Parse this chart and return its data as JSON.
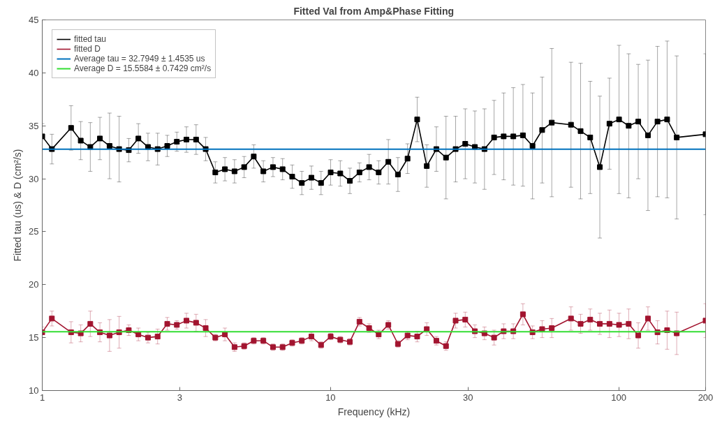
{
  "chart_data": {
    "type": "line",
    "title": "Fitted Val from Amp&Phase Fitting",
    "xlabel": "Frequency (kHz)",
    "ylabel": "Fitted tau (us) & D (cm²/s)",
    "x": [
      1,
      1.08,
      1.259,
      1.36,
      1.468,
      1.585,
      1.712,
      1.848,
      1.996,
      2.155,
      2.327,
      2.513,
      2.714,
      2.93,
      3.164,
      3.417,
      3.689,
      3.984,
      4.302,
      4.645,
      5.016,
      5.416,
      5.848,
      6.315,
      6.819,
      7.363,
      7.951,
      8.585,
      9.27,
      10.01,
      10.81,
      11.67,
      12.6,
      13.61,
      14.69,
      15.87,
      17.13,
      18.5,
      19.98,
      21.57,
      23.29,
      25.15,
      27.16,
      29.33,
      31.67,
      34.2,
      36.93,
      39.87,
      43.06,
      46.49,
      50.2,
      54.21,
      58.54,
      68.25,
      73.7,
      79.58,
      85.93,
      92.8,
      100.2,
      108.2,
      116.8,
      126.2,
      136.2,
      147.1,
      158.8,
      200
    ],
    "series": [
      {
        "name": "fitted tau",
        "color": "#000000",
        "values": [
          34.0,
          32.8,
          34.8,
          33.6,
          33.0,
          33.8,
          33.1,
          32.8,
          32.7,
          33.8,
          33.0,
          32.8,
          33.1,
          33.5,
          33.7,
          33.7,
          32.8,
          30.6,
          30.9,
          30.7,
          31.1,
          32.1,
          30.7,
          31.1,
          30.9,
          30.2,
          29.6,
          30.1,
          29.6,
          30.6,
          30.5,
          29.8,
          30.6,
          31.1,
          30.6,
          31.6,
          30.4,
          31.9,
          35.6,
          31.2,
          32.8,
          32.0,
          32.8,
          33.3,
          33.0,
          32.8,
          33.9,
          34.0,
          34.0,
          34.1,
          33.1,
          34.6,
          35.3,
          35.1,
          34.5,
          33.9,
          31.1,
          35.2,
          35.6,
          35.0,
          35.4,
          34.1,
          35.4,
          35.6,
          33.9,
          34.2
        ],
        "errors": [
          1.2,
          1.4,
          2.1,
          1.8,
          2.3,
          2.0,
          3.1,
          3.1,
          1.1,
          1.4,
          1.3,
          1.5,
          1.0,
          0.9,
          1.2,
          1.4,
          1.1,
          1.0,
          1.1,
          1.1,
          1.0,
          1.1,
          1.0,
          0.9,
          1.0,
          1.1,
          1.1,
          1.1,
          1.1,
          1.2,
          1.2,
          1.2,
          0.9,
          1.2,
          1.1,
          2.1,
          1.6,
          1.4,
          2.1,
          2.0,
          2.1,
          3.9,
          3.1,
          3.3,
          3.4,
          3.8,
          3.5,
          4.1,
          4.6,
          4.8,
          5.0,
          5.0,
          7.0,
          5.9,
          6.4,
          5.3,
          6.7,
          4.3,
          7.0,
          6.8,
          5.4,
          7.1,
          7.1,
          7.4,
          7.7,
          7.6
        ]
      },
      {
        "name": "fitted D",
        "color": "#a2142f",
        "values": [
          15.5,
          16.8,
          15.5,
          15.4,
          16.3,
          15.5,
          15.2,
          15.5,
          15.7,
          15.3,
          15.0,
          15.1,
          16.3,
          16.2,
          16.6,
          16.4,
          15.9,
          15.0,
          15.3,
          14.1,
          14.2,
          14.7,
          14.7,
          14.1,
          14.1,
          14.5,
          14.7,
          15.1,
          14.3,
          15.1,
          14.8,
          14.6,
          16.5,
          15.9,
          15.3,
          16.2,
          14.4,
          15.2,
          15.1,
          15.8,
          14.7,
          14.2,
          16.6,
          16.7,
          15.6,
          15.4,
          15.0,
          15.6,
          15.6,
          17.2,
          15.5,
          15.8,
          15.9,
          16.8,
          16.3,
          16.7,
          16.3,
          16.3,
          16.2,
          16.3,
          15.2,
          16.8,
          15.5,
          15.7,
          15.4,
          16.6
        ],
        "errors": [
          0.5,
          0.7,
          1.0,
          0.8,
          1.2,
          0.9,
          1.5,
          1.5,
          0.5,
          0.6,
          0.5,
          0.7,
          0.6,
          0.4,
          0.7,
          0.8,
          0.8,
          0.3,
          0.6,
          0.4,
          0.3,
          0.3,
          0.3,
          0.3,
          0.3,
          0.3,
          0.3,
          0.4,
          0.3,
          0.3,
          0.3,
          0.3,
          0.4,
          0.4,
          0.4,
          0.4,
          0.3,
          0.4,
          0.5,
          0.6,
          0.4,
          0.4,
          0.7,
          0.7,
          0.6,
          0.6,
          0.7,
          0.7,
          0.7,
          1.0,
          0.6,
          0.8,
          0.9,
          1.1,
          0.9,
          1.0,
          1.0,
          1.3,
          1.1,
          1.4,
          1.2,
          1.1,
          1.1,
          1.8,
          2.0,
          1.6
        ]
      }
    ],
    "ref_lines": [
      {
        "axis": "y",
        "value": 32.7949,
        "label": "Average tau = 32.7949 ± 1.4535 us",
        "color": "#0072bd"
      },
      {
        "axis": "y",
        "value": 15.5584,
        "label": "Average D = 15.5584 ± 0.7429 cm²/s",
        "color": "#33dd33"
      }
    ],
    "xlim": [
      1,
      200
    ],
    "xticks": [
      1,
      3,
      10,
      30,
      100,
      200
    ],
    "ylim": [
      10,
      45
    ],
    "yticks": [
      10,
      15,
      20,
      25,
      30,
      35,
      40,
      45
    ],
    "log": "x",
    "grid": false,
    "legend": "top left",
    "marker": "square",
    "line_style": "solid"
  }
}
